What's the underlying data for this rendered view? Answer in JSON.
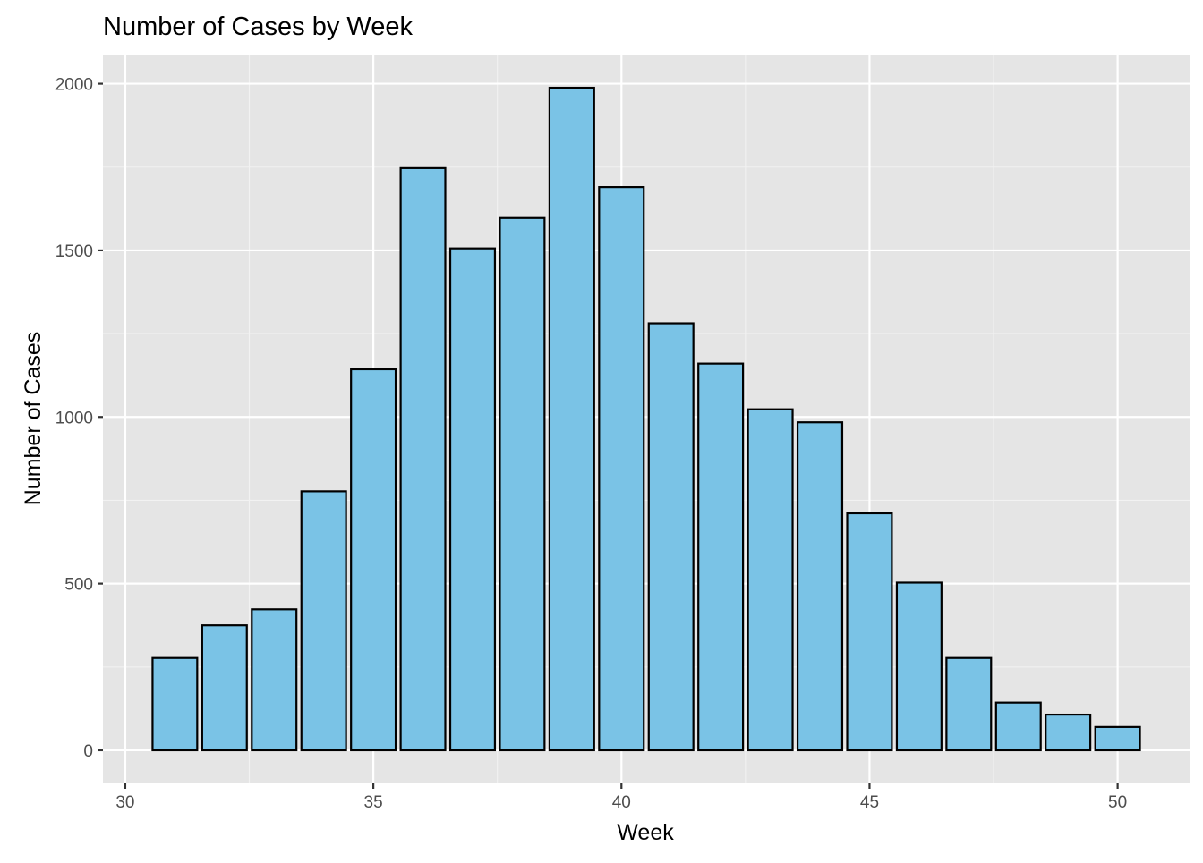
{
  "chart_data": {
    "type": "bar",
    "title": "Number of Cases by Week",
    "xlabel": "Week",
    "ylabel": "Number of Cases",
    "x": [
      31,
      32,
      33,
      34,
      35,
      36,
      37,
      38,
      39,
      40,
      41,
      42,
      43,
      44,
      45,
      46,
      47,
      48,
      49,
      50
    ],
    "values": [
      277,
      375,
      423,
      777,
      1143,
      1747,
      1506,
      1597,
      1988,
      1690,
      1281,
      1160,
      1023,
      984,
      711,
      503,
      277,
      143,
      107,
      70
    ],
    "xlim": [
      29.55,
      51.45
    ],
    "ylim": [
      -99.4,
      2087.4
    ],
    "x_ticks": [
      "30",
      "35",
      "40",
      "45",
      "50"
    ],
    "y_ticks": [
      "0",
      "500",
      "1000",
      "1500",
      "2000"
    ],
    "x_tick_values": [
      30,
      35,
      40,
      45,
      50
    ],
    "y_tick_values": [
      0,
      500,
      1000,
      1500,
      2000
    ],
    "grid": true,
    "colors": {
      "bar_fill": "#7ac3e6",
      "bar_outline": "#000000",
      "panel_background": "#e5e5e5",
      "grid_major": "#ffffff",
      "grid_minor": "#f2f2f2",
      "tick_mark": "#333333",
      "tick_text": "#4d4d4d"
    }
  }
}
